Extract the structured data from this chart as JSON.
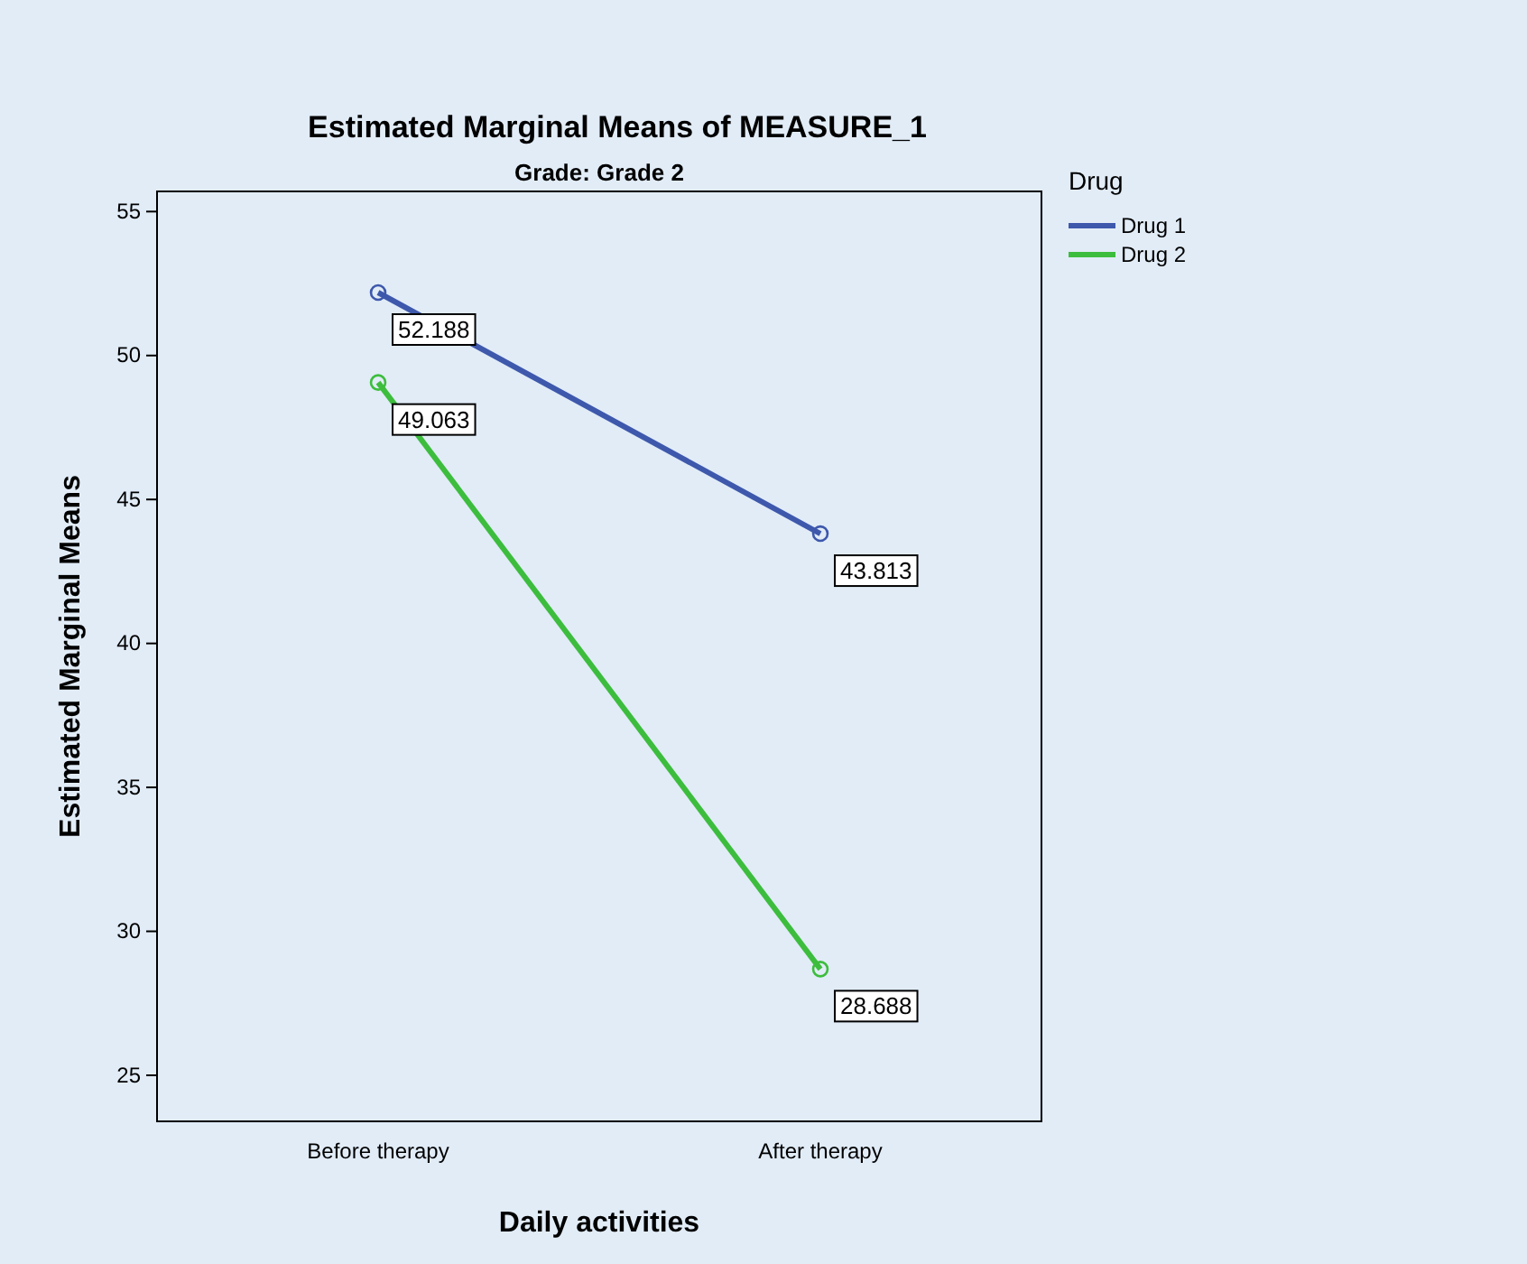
{
  "chart_data": {
    "type": "line",
    "title": "Estimated Marginal Means of MEASURE_1",
    "subtitle": "Grade: Grade 2",
    "xlabel": "Daily activities",
    "ylabel": "Estimated Marginal Means",
    "legend_title": "Drug",
    "categories": [
      "Before therapy",
      "After therapy"
    ],
    "series": [
      {
        "name": "Drug 1",
        "color": "#3e58ac",
        "values": [
          52.188,
          43.813
        ]
      },
      {
        "name": "Drug 2",
        "color": "#3dbd3d",
        "values": [
          49.063,
          28.688
        ]
      }
    ],
    "ylim": [
      23.4,
      55.7
    ],
    "yticks": [
      25,
      30,
      35,
      40,
      45,
      50,
      55
    ],
    "data_labels": true,
    "legend": "right",
    "marker": "circle",
    "line_style": "solid",
    "grid": false
  }
}
